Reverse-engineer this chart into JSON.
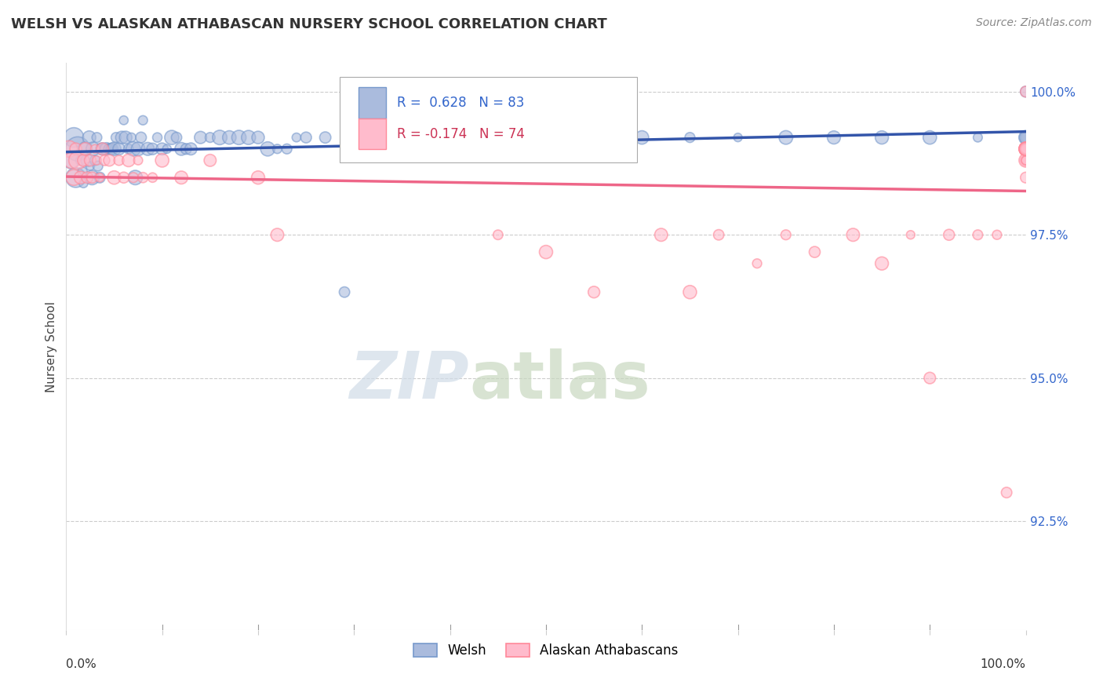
{
  "title": "WELSH VS ALASKAN ATHABASCAN NURSERY SCHOOL CORRELATION CHART",
  "source": "Source: ZipAtlas.com",
  "ylabel": "Nursery School",
  "legend_blue_label": "Welsh",
  "legend_pink_label": "Alaskan Athabascans",
  "R_blue": 0.628,
  "N_blue": 83,
  "R_pink": -0.174,
  "N_pink": 74,
  "xlim": [
    0.0,
    1.0
  ],
  "ylim": [
    0.906,
    1.005
  ],
  "yticks": [
    0.925,
    0.95,
    0.975,
    1.0
  ],
  "ytick_labels": [
    "92.5%",
    "95.0%",
    "97.5%",
    "100.0%"
  ],
  "blue_fill": "#aabbdd",
  "blue_edge": "#7799cc",
  "pink_fill": "#ffbbcc",
  "pink_edge": "#ff8899",
  "blue_line_color": "#3355aa",
  "pink_line_color": "#ee6688",
  "watermark_zip": "ZIP",
  "watermark_atlas": "atlas",
  "blue_x": [
    0.005,
    0.008,
    0.01,
    0.012,
    0.015,
    0.017,
    0.018,
    0.02,
    0.022,
    0.024,
    0.025,
    0.027,
    0.028,
    0.03,
    0.032,
    0.033,
    0.035,
    0.037,
    0.038,
    0.04,
    0.042,
    0.044,
    0.045,
    0.047,
    0.048,
    0.05,
    0.052,
    0.055,
    0.058,
    0.06,
    0.062,
    0.065,
    0.068,
    0.07,
    0.072,
    0.075,
    0.078,
    0.08,
    0.085,
    0.09,
    0.095,
    0.1,
    0.105,
    0.11,
    0.115,
    0.12,
    0.125,
    0.13,
    0.14,
    0.15,
    0.16,
    0.17,
    0.18,
    0.19,
    0.2,
    0.21,
    0.22,
    0.23,
    0.24,
    0.25,
    0.27,
    0.29,
    0.31,
    0.33,
    0.35,
    0.37,
    0.4,
    0.45,
    0.5,
    0.55,
    0.6,
    0.65,
    0.7,
    0.75,
    0.8,
    0.85,
    0.9,
    0.95,
    1.0,
    1.0,
    1.0,
    1.0,
    1.0
  ],
  "blue_y": [
    0.988,
    0.992,
    0.985,
    0.99,
    0.988,
    0.986,
    0.984,
    0.99,
    0.988,
    0.992,
    0.987,
    0.985,
    0.99,
    0.988,
    0.992,
    0.987,
    0.985,
    0.99,
    0.99,
    0.99,
    0.99,
    0.99,
    0.99,
    0.99,
    0.99,
    0.99,
    0.992,
    0.99,
    0.992,
    0.995,
    0.992,
    0.99,
    0.992,
    0.99,
    0.985,
    0.99,
    0.992,
    0.995,
    0.99,
    0.99,
    0.992,
    0.99,
    0.99,
    0.992,
    0.992,
    0.99,
    0.99,
    0.99,
    0.992,
    0.992,
    0.992,
    0.992,
    0.992,
    0.992,
    0.992,
    0.99,
    0.99,
    0.99,
    0.992,
    0.992,
    0.992,
    0.965,
    0.99,
    0.99,
    0.99,
    0.992,
    0.992,
    0.992,
    0.992,
    0.992,
    0.992,
    0.992,
    0.992,
    0.992,
    0.992,
    0.992,
    0.992,
    0.992,
    0.992,
    0.992,
    0.992,
    0.992,
    1.0
  ],
  "pink_x": [
    0.003,
    0.006,
    0.008,
    0.01,
    0.012,
    0.015,
    0.018,
    0.02,
    0.022,
    0.025,
    0.027,
    0.03,
    0.032,
    0.035,
    0.038,
    0.04,
    0.045,
    0.05,
    0.055,
    0.06,
    0.065,
    0.07,
    0.075,
    0.08,
    0.09,
    0.1,
    0.12,
    0.15,
    0.2,
    0.22,
    0.45,
    0.5,
    0.55,
    0.62,
    0.65,
    0.68,
    0.72,
    0.75,
    0.78,
    0.82,
    0.85,
    0.88,
    0.9,
    0.92,
    0.95,
    0.97,
    0.98,
    1.0,
    1.0,
    1.0,
    1.0,
    1.0,
    1.0,
    1.0,
    1.0,
    1.0,
    1.0,
    1.0,
    1.0,
    1.0,
    1.0,
    1.0,
    1.0,
    1.0,
    1.0,
    1.0,
    1.0,
    1.0,
    1.0,
    1.0,
    1.0,
    1.0,
    1.0,
    1.0
  ],
  "pink_y": [
    0.99,
    0.988,
    0.985,
    0.99,
    0.988,
    0.985,
    0.988,
    0.99,
    0.985,
    0.988,
    0.985,
    0.99,
    0.988,
    0.985,
    0.99,
    0.988,
    0.988,
    0.985,
    0.988,
    0.985,
    0.988,
    0.985,
    0.988,
    0.985,
    0.985,
    0.988,
    0.985,
    0.988,
    0.985,
    0.975,
    0.975,
    0.972,
    0.965,
    0.975,
    0.965,
    0.975,
    0.97,
    0.975,
    0.972,
    0.975,
    0.97,
    0.975,
    0.95,
    0.975,
    0.975,
    0.975,
    0.93,
    0.99,
    0.99,
    0.988,
    0.99,
    0.985,
    0.99,
    0.988,
    0.99,
    0.99,
    0.99,
    0.99,
    0.988,
    0.99,
    0.99,
    0.988,
    0.99,
    0.99,
    0.99,
    0.99,
    0.99,
    0.99,
    0.99,
    0.99,
    0.99,
    0.99,
    0.99,
    1.0
  ]
}
